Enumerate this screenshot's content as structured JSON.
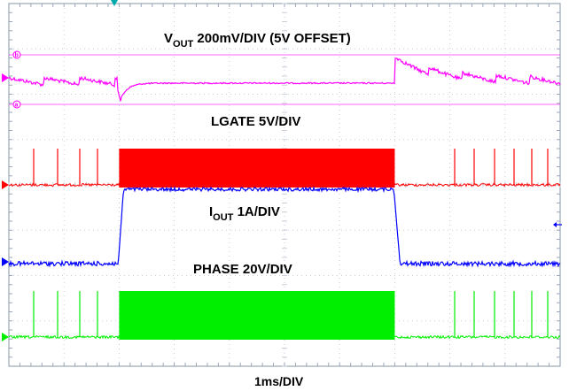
{
  "chart_data": {
    "type": "line",
    "x_axis_label": "1ms/DIV",
    "x_divisions": 10,
    "y_divisions": 8,
    "grid": true,
    "transient": {
      "load_step_start_div": 2.0,
      "load_step_end_div": 7.0
    },
    "series": [
      {
        "label_main": "V",
        "label_sub": "OUT",
        "label_rest": " 200mV/DIV (5V OFFSET)",
        "color": "#ff00ff",
        "description_note": "",
        "offset_markers": [
          "b",
          "a"
        ]
      },
      {
        "label_main": "LGATE 5V/DIV",
        "label_sub": "",
        "label_rest": "",
        "color": "#ff0000"
      },
      {
        "label_main": "I",
        "label_sub": "OUT",
        "label_rest": " 1A/DIV",
        "color": "#0000ff"
      },
      {
        "label_main": "PHASE 20V/DIV",
        "label_sub": "",
        "label_rest": "",
        "color": "#00ee00"
      }
    ],
    "trigger_marker_color": "#00aaaa"
  }
}
